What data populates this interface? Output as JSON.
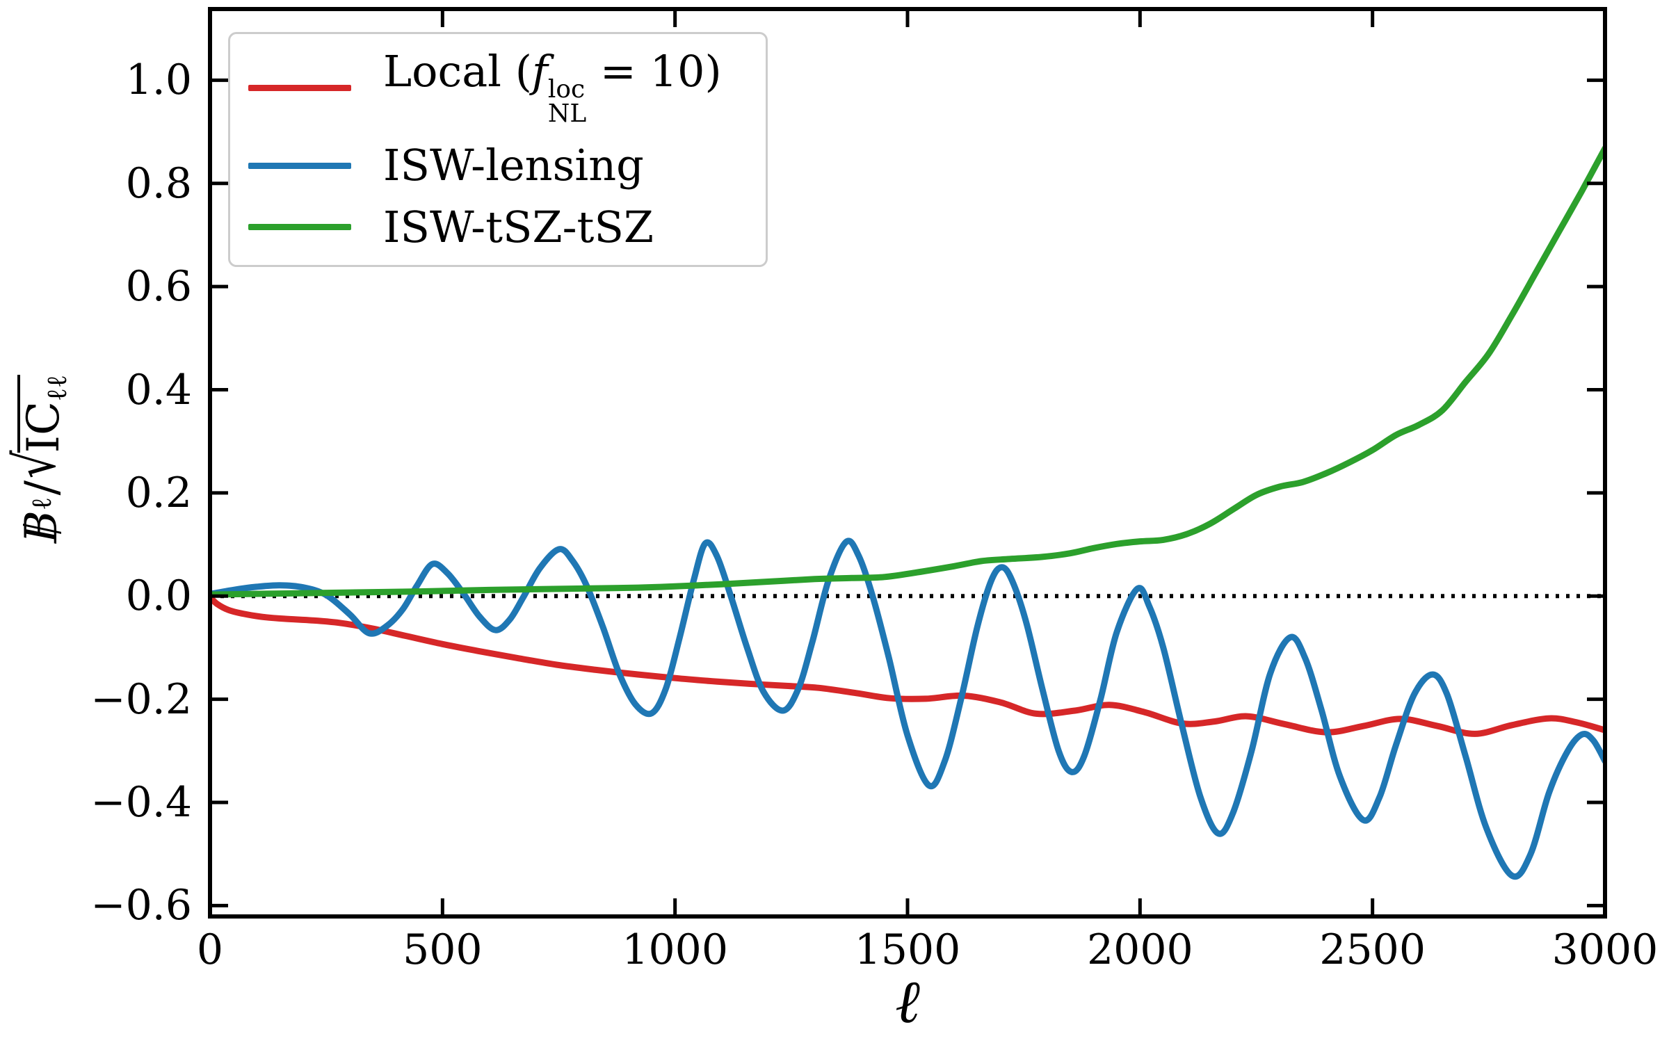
{
  "figure": {
    "background": "#ffffff"
  },
  "axes": {
    "xlabel": "ℓ",
    "ylabel_parts": {
      "B": "B",
      "B_sub": "ℓ",
      "slash": "/",
      "sqrt": "√",
      "radicand": "IC",
      "radicand_sub": "ℓℓ"
    }
  },
  "legend": {
    "entries": [
      {
        "color": "#d62728",
        "parts": {
          "pre": "Local (",
          "f": "f",
          "sup": "loc",
          "sub": "NL",
          "post": " = 10)"
        }
      },
      {
        "color": "#1f77b4",
        "label": "ISW-lensing"
      },
      {
        "color": "#2ca02c",
        "label": "ISW-tSZ-tSZ"
      }
    ]
  },
  "chart_data": {
    "type": "line",
    "title": "",
    "xlabel": "ℓ",
    "ylabel": "B_ℓ / sqrt(I C_ℓℓ)",
    "xlim": [
      0,
      3000
    ],
    "ylim": [
      -0.621,
      1.138
    ],
    "grid": false,
    "legend_position": "upper left",
    "zero_line": {
      "y": 0.0,
      "style": "dotted",
      "color": "#000000"
    },
    "xticks": [
      {
        "value": 0,
        "label": "0"
      },
      {
        "value": 500,
        "label": "500"
      },
      {
        "value": 1000,
        "label": "1000"
      },
      {
        "value": 1500,
        "label": "1500"
      },
      {
        "value": 2000,
        "label": "2000"
      },
      {
        "value": 2500,
        "label": "2500"
      },
      {
        "value": 3000,
        "label": "3000"
      }
    ],
    "yticks": [
      {
        "value": 1.0,
        "label": "1.0"
      },
      {
        "value": 0.8,
        "label": "0.8"
      },
      {
        "value": 0.6,
        "label": "0.6"
      },
      {
        "value": 0.4,
        "label": "0.4"
      },
      {
        "value": 0.2,
        "label": "0.2"
      },
      {
        "value": 0.0,
        "label": "0.0"
      },
      {
        "value": -0.2,
        "label": "−0.2"
      },
      {
        "value": -0.4,
        "label": "−0.4"
      },
      {
        "value": -0.6,
        "label": "−0.6"
      }
    ],
    "series": [
      {
        "name": "Local (fNL^loc = 10)",
        "color": "#d62728",
        "points": [
          [
            0,
            -0.002
          ],
          [
            15,
            -0.015
          ],
          [
            40,
            -0.027
          ],
          [
            70,
            -0.034
          ],
          [
            110,
            -0.04
          ],
          [
            160,
            -0.044
          ],
          [
            220,
            -0.047
          ],
          [
            280,
            -0.052
          ],
          [
            350,
            -0.063
          ],
          [
            420,
            -0.077
          ],
          [
            500,
            -0.093
          ],
          [
            580,
            -0.107
          ],
          [
            660,
            -0.12
          ],
          [
            745,
            -0.133
          ],
          [
            830,
            -0.143
          ],
          [
            920,
            -0.152
          ],
          [
            1000,
            -0.159
          ],
          [
            1080,
            -0.165
          ],
          [
            1160,
            -0.17
          ],
          [
            1240,
            -0.174
          ],
          [
            1310,
            -0.178
          ],
          [
            1390,
            -0.188
          ],
          [
            1463,
            -0.198
          ],
          [
            1540,
            -0.199
          ],
          [
            1620,
            -0.193
          ],
          [
            1700,
            -0.206
          ],
          [
            1777,
            -0.228
          ],
          [
            1860,
            -0.222
          ],
          [
            1934,
            -0.211
          ],
          [
            2010,
            -0.225
          ],
          [
            2091,
            -0.247
          ],
          [
            2160,
            -0.243
          ],
          [
            2230,
            -0.233
          ],
          [
            2310,
            -0.248
          ],
          [
            2400,
            -0.264
          ],
          [
            2480,
            -0.252
          ],
          [
            2560,
            -0.238
          ],
          [
            2640,
            -0.252
          ],
          [
            2720,
            -0.267
          ],
          [
            2800,
            -0.25
          ],
          [
            2880,
            -0.237
          ],
          [
            2940,
            -0.245
          ],
          [
            3000,
            -0.26
          ]
        ]
      },
      {
        "name": "ISW-lensing",
        "color": "#1f77b4",
        "points": [
          [
            0,
            0.004
          ],
          [
            50,
            0.012
          ],
          [
            100,
            0.018
          ],
          [
            150,
            0.021
          ],
          [
            200,
            0.017
          ],
          [
            250,
            0.002
          ],
          [
            300,
            -0.035
          ],
          [
            342,
            -0.072
          ],
          [
            380,
            -0.058
          ],
          [
            415,
            -0.025
          ],
          [
            445,
            0.02
          ],
          [
            478,
            0.062
          ],
          [
            510,
            0.045
          ],
          [
            545,
            0.005
          ],
          [
            580,
            -0.04
          ],
          [
            614,
            -0.066
          ],
          [
            645,
            -0.045
          ],
          [
            675,
            0.0
          ],
          [
            710,
            0.055
          ],
          [
            751,
            0.091
          ],
          [
            780,
            0.068
          ],
          [
            810,
            0.02
          ],
          [
            845,
            -0.06
          ],
          [
            880,
            -0.15
          ],
          [
            915,
            -0.21
          ],
          [
            950,
            -0.227
          ],
          [
            980,
            -0.18
          ],
          [
            1010,
            -0.08
          ],
          [
            1040,
            0.03
          ],
          [
            1065,
            0.102
          ],
          [
            1090,
            0.078
          ],
          [
            1120,
            0.0
          ],
          [
            1155,
            -0.1
          ],
          [
            1190,
            -0.185
          ],
          [
            1232,
            -0.222
          ],
          [
            1265,
            -0.18
          ],
          [
            1295,
            -0.09
          ],
          [
            1330,
            0.03
          ],
          [
            1368,
            0.105
          ],
          [
            1395,
            0.078
          ],
          [
            1425,
            0.0
          ],
          [
            1460,
            -0.12
          ],
          [
            1500,
            -0.27
          ],
          [
            1546,
            -0.367
          ],
          [
            1580,
            -0.32
          ],
          [
            1615,
            -0.2
          ],
          [
            1650,
            -0.06
          ],
          [
            1680,
            0.03
          ],
          [
            1703,
            0.056
          ],
          [
            1725,
            0.03
          ],
          [
            1755,
            -0.05
          ],
          [
            1790,
            -0.18
          ],
          [
            1825,
            -0.3
          ],
          [
            1853,
            -0.341
          ],
          [
            1880,
            -0.31
          ],
          [
            1915,
            -0.2
          ],
          [
            1950,
            -0.07
          ],
          [
            1994,
            0.014
          ],
          [
            2020,
            -0.02
          ],
          [
            2050,
            -0.1
          ],
          [
            2090,
            -0.25
          ],
          [
            2130,
            -0.39
          ],
          [
            2168,
            -0.46
          ],
          [
            2200,
            -0.42
          ],
          [
            2240,
            -0.3
          ],
          [
            2280,
            -0.15
          ],
          [
            2323,
            -0.08
          ],
          [
            2355,
            -0.12
          ],
          [
            2390,
            -0.22
          ],
          [
            2430,
            -0.35
          ],
          [
            2480,
            -0.434
          ],
          [
            2515,
            -0.39
          ],
          [
            2550,
            -0.29
          ],
          [
            2590,
            -0.19
          ],
          [
            2629,
            -0.152
          ],
          [
            2660,
            -0.19
          ],
          [
            2700,
            -0.31
          ],
          [
            2745,
            -0.45
          ],
          [
            2800,
            -0.542
          ],
          [
            2840,
            -0.5
          ],
          [
            2880,
            -0.38
          ],
          [
            2920,
            -0.3
          ],
          [
            2951,
            -0.268
          ],
          [
            2975,
            -0.28
          ],
          [
            3000,
            -0.32
          ]
        ]
      },
      {
        "name": "ISW-tSZ-tSZ",
        "color": "#2ca02c",
        "points": [
          [
            0,
            0.003
          ],
          [
            150,
            0.005
          ],
          [
            300,
            0.007
          ],
          [
            450,
            0.009
          ],
          [
            600,
            0.012
          ],
          [
            750,
            0.014
          ],
          [
            900,
            0.016
          ],
          [
            1000,
            0.019
          ],
          [
            1100,
            0.023
          ],
          [
            1200,
            0.028
          ],
          [
            1300,
            0.033
          ],
          [
            1380,
            0.035
          ],
          [
            1450,
            0.037
          ],
          [
            1520,
            0.046
          ],
          [
            1600,
            0.058
          ],
          [
            1660,
            0.068
          ],
          [
            1720,
            0.072
          ],
          [
            1790,
            0.076
          ],
          [
            1850,
            0.083
          ],
          [
            1900,
            0.093
          ],
          [
            1950,
            0.101
          ],
          [
            2000,
            0.106
          ],
          [
            2050,
            0.109
          ],
          [
            2100,
            0.12
          ],
          [
            2150,
            0.14
          ],
          [
            2200,
            0.168
          ],
          [
            2250,
            0.196
          ],
          [
            2300,
            0.212
          ],
          [
            2350,
            0.221
          ],
          [
            2400,
            0.238
          ],
          [
            2450,
            0.259
          ],
          [
            2500,
            0.283
          ],
          [
            2550,
            0.312
          ],
          [
            2600,
            0.332
          ],
          [
            2650,
            0.36
          ],
          [
            2700,
            0.415
          ],
          [
            2750,
            0.47
          ],
          [
            2800,
            0.545
          ],
          [
            2850,
            0.625
          ],
          [
            2900,
            0.705
          ],
          [
            2950,
            0.785
          ],
          [
            3000,
            0.868
          ]
        ]
      }
    ]
  }
}
